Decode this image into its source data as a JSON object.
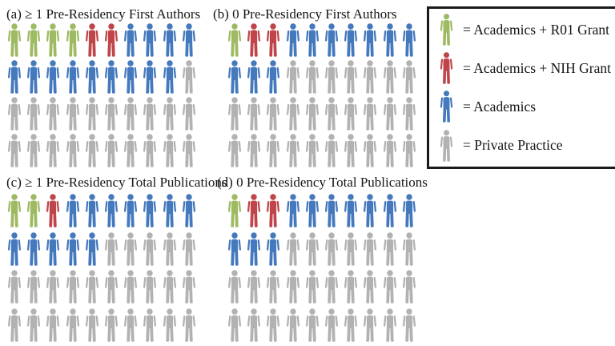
{
  "chart_data": {
    "type": "pictograph",
    "icons_per_panel": 40,
    "columns_per_row": 10,
    "categories": [
      "Academics + R01 Grant",
      "Academics + NIH Grant",
      "Academics",
      "Private Practice"
    ],
    "colors": {
      "r01": "#9eba62",
      "nih": "#c0454a",
      "academics": "#4579bd",
      "private": "#b2b2b2"
    },
    "panels": [
      {
        "label": "(a)",
        "title": "(a) ≥ 1 Pre-Residency First Authors",
        "counts": {
          "r01": 4,
          "nih": 2,
          "academics": 13,
          "private": 21
        }
      },
      {
        "label": "(b)",
        "title": "(b) 0 Pre-Residency First Authors",
        "counts": {
          "r01": 1,
          "nih": 2,
          "academics": 10,
          "private": 27
        }
      },
      {
        "label": "(c)",
        "title": "(c) ≥ 1 Pre-Residency Total Publications",
        "counts": {
          "r01": 2,
          "nih": 1,
          "academics": 12,
          "private": 25
        }
      },
      {
        "label": "(d)",
        "title": "(d) 0 Pre-Residency Total Publications",
        "counts": {
          "r01": 1,
          "nih": 2,
          "academics": 10,
          "private": 27
        }
      }
    ],
    "legend": {
      "items": [
        {
          "key": "r01",
          "label": "= Academics + R01 Grant"
        },
        {
          "key": "nih",
          "label": "= Academics + NIH Grant"
        },
        {
          "key": "academics",
          "label": "= Academics"
        },
        {
          "key": "private",
          "label": "= Private Practice"
        }
      ]
    }
  }
}
